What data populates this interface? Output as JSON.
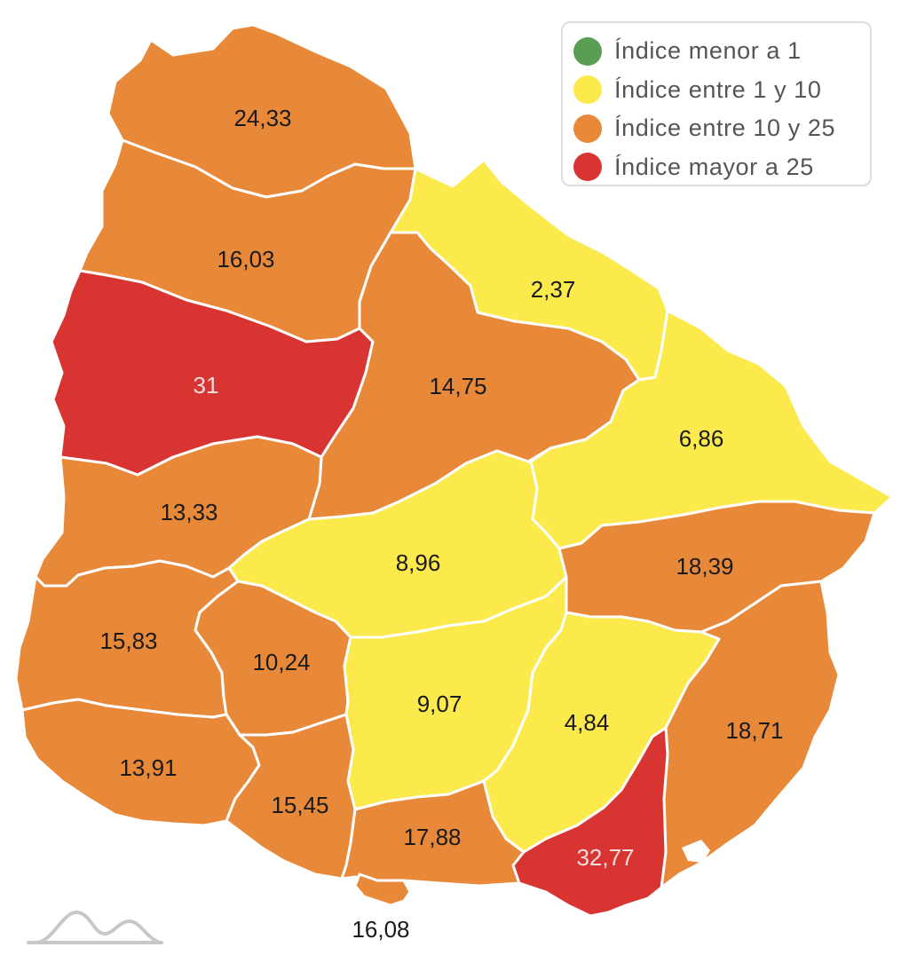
{
  "legend": {
    "items": [
      {
        "label": "Índice menor a 1",
        "color": "#5a9e54"
      },
      {
        "label": "Índice entre 1 y 10",
        "color": "#fcea4c"
      },
      {
        "label": "Índice entre 10 y 25",
        "color": "#e8893a"
      },
      {
        "label": "Índice mayor a 25",
        "color": "#d83432"
      }
    ]
  },
  "regions": [
    {
      "id": "r1",
      "value": "24,33",
      "category": "orange"
    },
    {
      "id": "r2",
      "value": "16,03",
      "category": "orange"
    },
    {
      "id": "r3",
      "value": "31",
      "category": "red"
    },
    {
      "id": "r4",
      "value": "2,37",
      "category": "yellow"
    },
    {
      "id": "r5",
      "value": "14,75",
      "category": "orange"
    },
    {
      "id": "r6",
      "value": "6,86",
      "category": "yellow"
    },
    {
      "id": "r7",
      "value": "13,33",
      "category": "orange"
    },
    {
      "id": "r8",
      "value": "8,96",
      "category": "yellow"
    },
    {
      "id": "r9",
      "value": "18,39",
      "category": "orange"
    },
    {
      "id": "r10",
      "value": "15,83",
      "category": "orange"
    },
    {
      "id": "r11",
      "value": "10,24",
      "category": "orange"
    },
    {
      "id": "r12",
      "value": "9,07",
      "category": "yellow"
    },
    {
      "id": "r13",
      "value": "4,84",
      "category": "yellow"
    },
    {
      "id": "r14",
      "value": "18,71",
      "category": "orange"
    },
    {
      "id": "r15",
      "value": "13,91",
      "category": "orange"
    },
    {
      "id": "r16",
      "value": "15,45",
      "category": "orange"
    },
    {
      "id": "r17",
      "value": "17,88",
      "category": "orange"
    },
    {
      "id": "r18",
      "value": "32,77",
      "category": "red"
    },
    {
      "id": "r19",
      "value": "16,08",
      "category": "orange"
    }
  ],
  "colors": {
    "orange": "#e8893a",
    "yellow": "#fcea4c",
    "red": "#d83432",
    "label_dark": "#1a1a1a",
    "label_light": "#f3dede",
    "border": "#ffffff"
  }
}
